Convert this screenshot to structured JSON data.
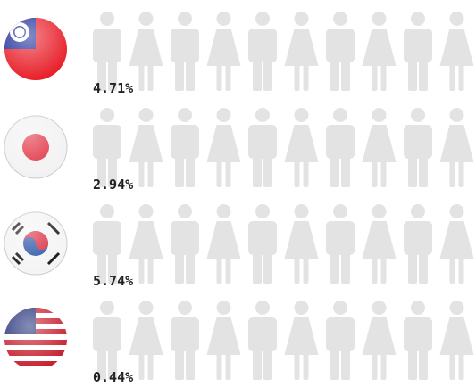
{
  "chart_data": {
    "type": "pictograph",
    "categories": [
      null,
      null,
      null,
      null
    ],
    "values": [
      4.71,
      2.94,
      5.74,
      0.44
    ],
    "value_labels": [
      "4.71%",
      "2.94%",
      "5.74%",
      "0.44%"
    ],
    "colors": [
      "#f4cf73",
      "#a7c7e7",
      "#9cc57a",
      "#f0a3aa"
    ],
    "xlim": [
      0,
      100
    ]
  }
}
